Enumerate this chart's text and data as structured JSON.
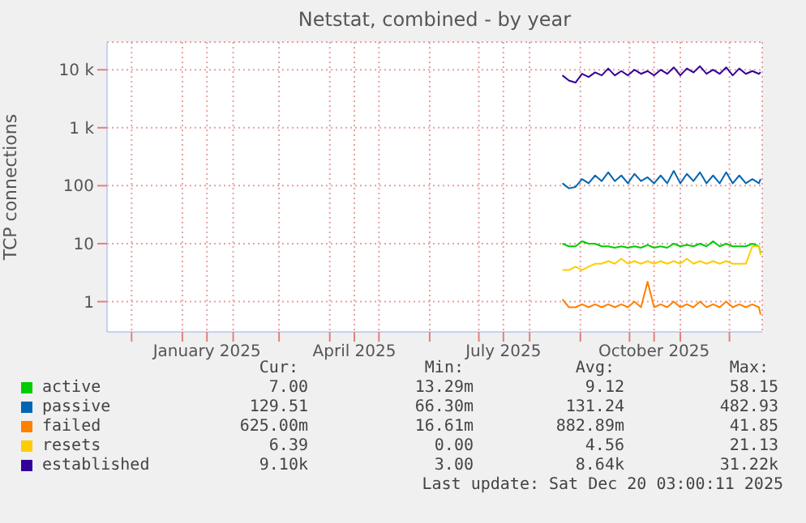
{
  "chart_data": {
    "type": "line",
    "title": "Netstat, combined - by year",
    "ylabel": "TCP connections",
    "x": [
      "2025-08-21",
      "2025-08-25",
      "2025-08-29",
      "2025-09-02",
      "2025-09-06",
      "2025-09-10",
      "2025-09-14",
      "2025-09-18",
      "2025-09-22",
      "2025-09-26",
      "2025-09-30",
      "2025-10-04",
      "2025-10-08",
      "2025-10-12",
      "2025-10-16",
      "2025-10-20",
      "2025-10-24",
      "2025-10-28",
      "2025-11-01",
      "2025-11-05",
      "2025-11-09",
      "2025-11-13",
      "2025-11-17",
      "2025-11-21",
      "2025-11-25",
      "2025-11-29",
      "2025-12-03",
      "2025-12-07",
      "2025-12-11",
      "2025-12-15",
      "2025-12-19",
      "2025-12-20"
    ],
    "series": [
      {
        "name": "active",
        "color": "#00cc00",
        "values": [
          10,
          9,
          9,
          11,
          10,
          10,
          9,
          9,
          8.5,
          9,
          8.5,
          9,
          8.5,
          9.5,
          8.5,
          9,
          8.5,
          10,
          9,
          9.5,
          9,
          10,
          9,
          11,
          9,
          10,
          9,
          9,
          9,
          10,
          9,
          7
        ]
      },
      {
        "name": "passive",
        "color": "#0066b3",
        "values": [
          110,
          90,
          95,
          130,
          110,
          150,
          120,
          170,
          120,
          150,
          110,
          160,
          120,
          140,
          110,
          150,
          110,
          180,
          110,
          160,
          120,
          170,
          110,
          150,
          110,
          170,
          110,
          150,
          110,
          130,
          110,
          130
        ]
      },
      {
        "name": "failed",
        "color": "#ff8000",
        "values": [
          1.1,
          0.8,
          0.8,
          0.9,
          0.8,
          0.9,
          0.8,
          0.9,
          0.8,
          0.9,
          0.8,
          1,
          0.8,
          2.2,
          0.8,
          0.9,
          0.8,
          1,
          0.8,
          0.9,
          0.8,
          1,
          0.8,
          0.9,
          0.8,
          1,
          0.8,
          0.9,
          0.8,
          0.9,
          0.8,
          0.6
        ]
      },
      {
        "name": "resets",
        "color": "#ffcc00",
        "values": [
          3.5,
          3.5,
          4,
          3.5,
          4,
          4.5,
          4.5,
          5,
          4.5,
          5.5,
          4.5,
          5,
          4.5,
          5,
          4.5,
          5,
          4.5,
          5,
          4.5,
          5.5,
          4.5,
          5,
          4.5,
          5,
          4.5,
          5,
          4.5,
          4.5,
          4.5,
          9,
          9,
          6.4
        ]
      },
      {
        "name": "established",
        "color": "#330099",
        "values": [
          8000,
          6500,
          6000,
          8500,
          7500,
          9000,
          8000,
          10500,
          8000,
          9500,
          8000,
          10000,
          8500,
          9500,
          8000,
          10000,
          8500,
          11000,
          8000,
          10500,
          9000,
          11500,
          8500,
          10000,
          8500,
          11000,
          8000,
          10500,
          8500,
          9500,
          8500,
          9100
        ]
      }
    ],
    "log": "y",
    "ylim": [
      0.3,
      30000
    ],
    "yticks": [
      1,
      10,
      100,
      {
        "value": 1000,
        "label": "1 k"
      },
      {
        "value": 10000,
        "label": "10 k"
      }
    ],
    "xlim": [
      "2024-11-16",
      "2025-12-21"
    ],
    "xticks": [
      {
        "value": "2024-12-01",
        "label": null
      },
      {
        "value": "2025-01-01",
        "label": null
      },
      {
        "value": "2025-01-16",
        "label": "January 2025"
      },
      {
        "value": "2025-02-01",
        "label": null
      },
      {
        "value": "2025-03-01",
        "label": null
      },
      {
        "value": "2025-04-01",
        "label": null
      },
      {
        "value": "2025-04-16",
        "label": "April 2025"
      },
      {
        "value": "2025-05-01",
        "label": null
      },
      {
        "value": "2025-06-01",
        "label": null
      },
      {
        "value": "2025-07-01",
        "label": null
      },
      {
        "value": "2025-07-16",
        "label": "July 2025"
      },
      {
        "value": "2025-08-01",
        "label": null
      },
      {
        "value": "2025-09-01",
        "label": null
      },
      {
        "value": "2025-10-01",
        "label": null
      },
      {
        "value": "2025-10-16",
        "label": "October 2025"
      },
      {
        "value": "2025-11-01",
        "label": null
      },
      {
        "value": "2025-12-01",
        "label": null
      }
    ],
    "grid": true,
    "legend": "bottom",
    "marker": "none",
    "annotations": [
      "Cur:",
      "Min:",
      "Avg:",
      "Max:",
      "7.00",
      "13.29m",
      "9.12",
      "58.15",
      "129.51",
      "66.30m",
      "131.24",
      "482.93",
      "625.00m",
      "16.61m",
      "882.89m",
      "41.85",
      "6.39",
      "0.00",
      "4.56",
      "21.13",
      "9.10k",
      "3.00",
      "8.64k",
      "31.22k",
      "Last update: Sat Dec 20 03:00:11 2025"
    ]
  }
}
